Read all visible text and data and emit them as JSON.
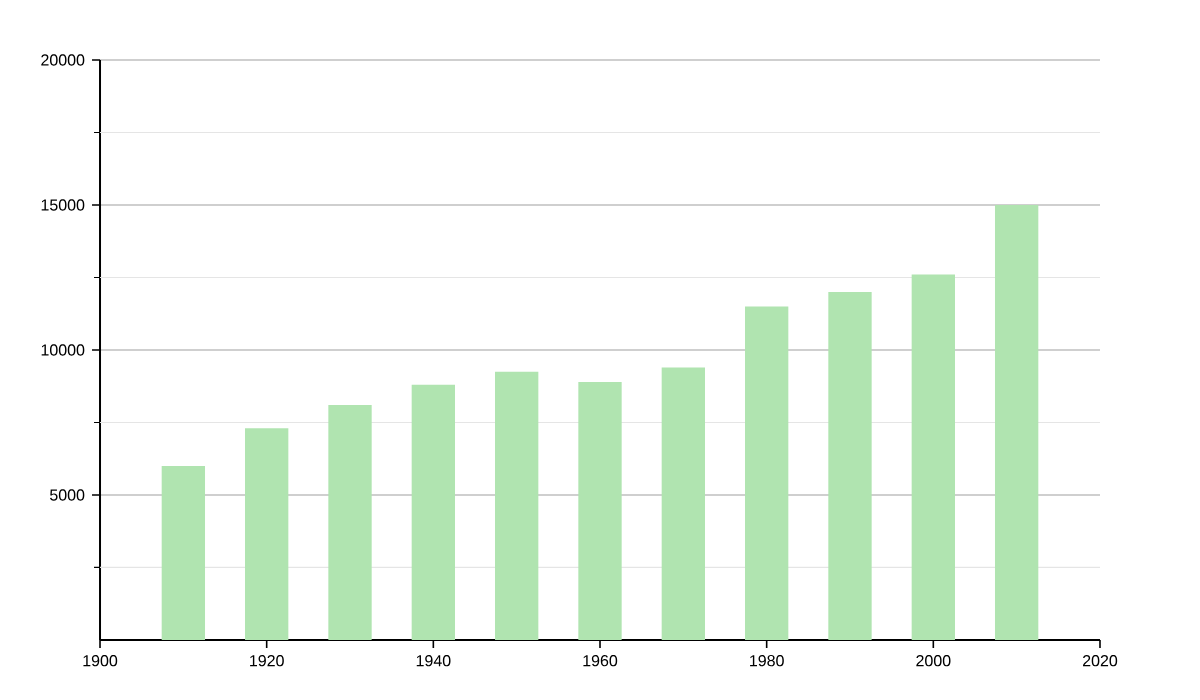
{
  "chart_data": {
    "type": "bar",
    "x": [
      1910,
      1920,
      1930,
      1940,
      1950,
      1960,
      1970,
      1980,
      1990,
      2000,
      2010
    ],
    "values": [
      6000,
      7300,
      8100,
      8800,
      9250,
      8900,
      9400,
      11500,
      12000,
      12600,
      15000
    ],
    "color": "#b0e4b0",
    "xlim": [
      1900,
      2020
    ],
    "xticks": [
      1900,
      1920,
      1940,
      1960,
      1980,
      2000,
      2020
    ],
    "ylim": [
      0,
      20000
    ],
    "yticks": [
      {
        "value": 2500,
        "label": null
      },
      5000,
      {
        "value": 7500,
        "label": null
      },
      10000,
      {
        "value": 12500,
        "label": null
      },
      15000,
      {
        "value": 17500,
        "label": null
      },
      20000
    ],
    "grid": "y"
  }
}
